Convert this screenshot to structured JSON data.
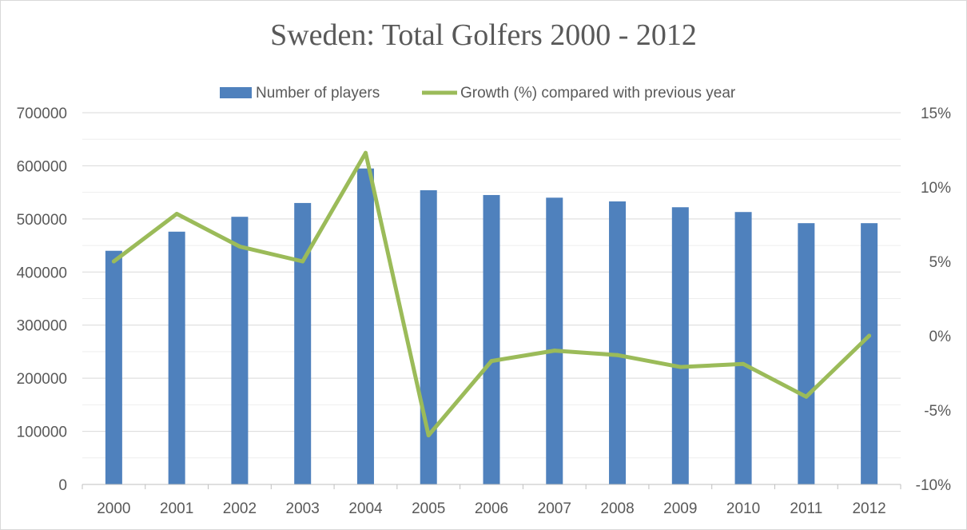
{
  "chart_data": {
    "type": "bar",
    "title": "Sweden: Total Golfers 2000 - 2012",
    "categories": [
      "2000",
      "2001",
      "2002",
      "2003",
      "2004",
      "2005",
      "2006",
      "2007",
      "2008",
      "2009",
      "2010",
      "2011",
      "2012"
    ],
    "series": [
      {
        "name": "Number of players",
        "type": "bar",
        "axis": "left",
        "color": "#4f81bd",
        "values": [
          440000,
          476000,
          504000,
          530000,
          595000,
          554000,
          545000,
          540000,
          533000,
          522000,
          513000,
          492000,
          492000
        ]
      },
      {
        "name": "Growth (%) compared with previous year",
        "type": "line",
        "axis": "right",
        "color": "#9bbb59",
        "values": [
          5.0,
          8.2,
          6.0,
          5.0,
          12.3,
          -6.7,
          -1.7,
          -1.0,
          -1.3,
          -2.1,
          -1.9,
          -4.1,
          0.0
        ]
      }
    ],
    "y_left": {
      "min": 0,
      "max": 700000,
      "step": 100000,
      "tick_labels": [
        "0",
        "100000",
        "200000",
        "300000",
        "400000",
        "500000",
        "600000",
        "700000"
      ]
    },
    "y_right": {
      "min": -10,
      "max": 15,
      "step": 5,
      "tick_labels": [
        "-10%",
        "-5%",
        "0%",
        "5%",
        "10%",
        "15%"
      ]
    },
    "grid": true,
    "legend_position": "top"
  }
}
